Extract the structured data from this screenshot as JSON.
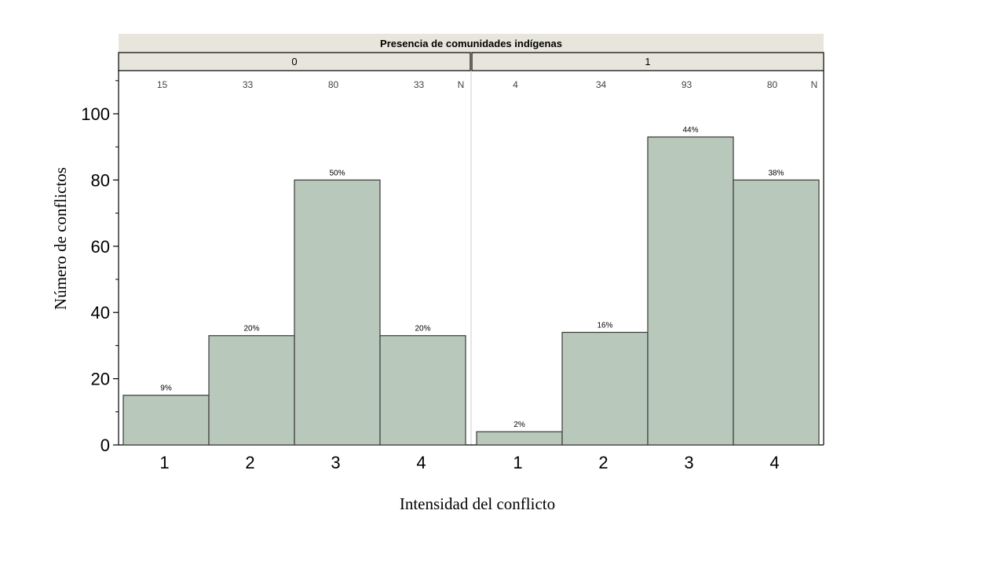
{
  "chart_data": {
    "type": "bar",
    "title": "Presencia de comunidades indígenas",
    "xlabel": "Intensidad del conflicto",
    "ylabel": "Número de conflictos",
    "ylim": [
      0,
      110
    ],
    "yticks": [
      0,
      20,
      40,
      60,
      80,
      100
    ],
    "categories": [
      "1",
      "2",
      "3",
      "4"
    ],
    "n_marker": "N",
    "bar_color": "#b8c9bb",
    "header_color": "#e8e6dc",
    "panels": [
      {
        "label": "0",
        "values": [
          15,
          33,
          80,
          33
        ],
        "n": [
          "15",
          "33",
          "80",
          "33"
        ],
        "percent_labels": [
          "9%",
          "20%",
          "50%",
          "20%"
        ]
      },
      {
        "label": "1",
        "values": [
          4,
          34,
          93,
          80
        ],
        "n": [
          "4",
          "34",
          "93",
          "80"
        ],
        "percent_labels": [
          "2%",
          "16%",
          "44%",
          "38%"
        ]
      }
    ]
  }
}
